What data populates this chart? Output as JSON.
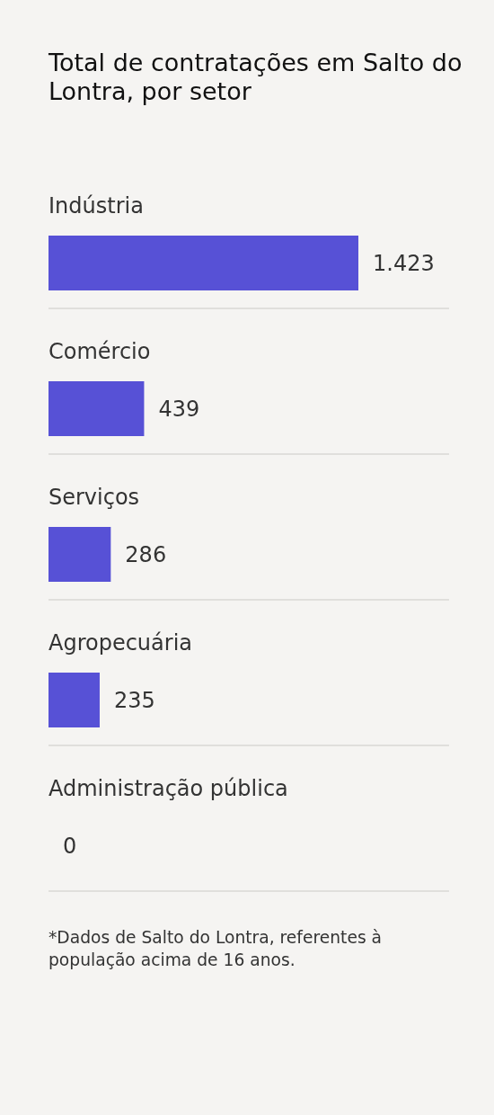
{
  "chart_data": {
    "type": "bar",
    "orientation": "horizontal",
    "title": "Total de contratações em Salto do Lontra, por setor",
    "categories": [
      "Indústria",
      "Comércio",
      "Serviços",
      "Agropecuária",
      "Administração pública"
    ],
    "values": [
      1423,
      439,
      286,
      235,
      0
    ],
    "value_labels": [
      "1.423",
      "439",
      "286",
      "235",
      "0"
    ],
    "color": "#5751d6",
    "grid": "y",
    "annotations": [
      "*Dados de Salto do Lontra, referentes à população acima de 16 anos."
    ]
  }
}
